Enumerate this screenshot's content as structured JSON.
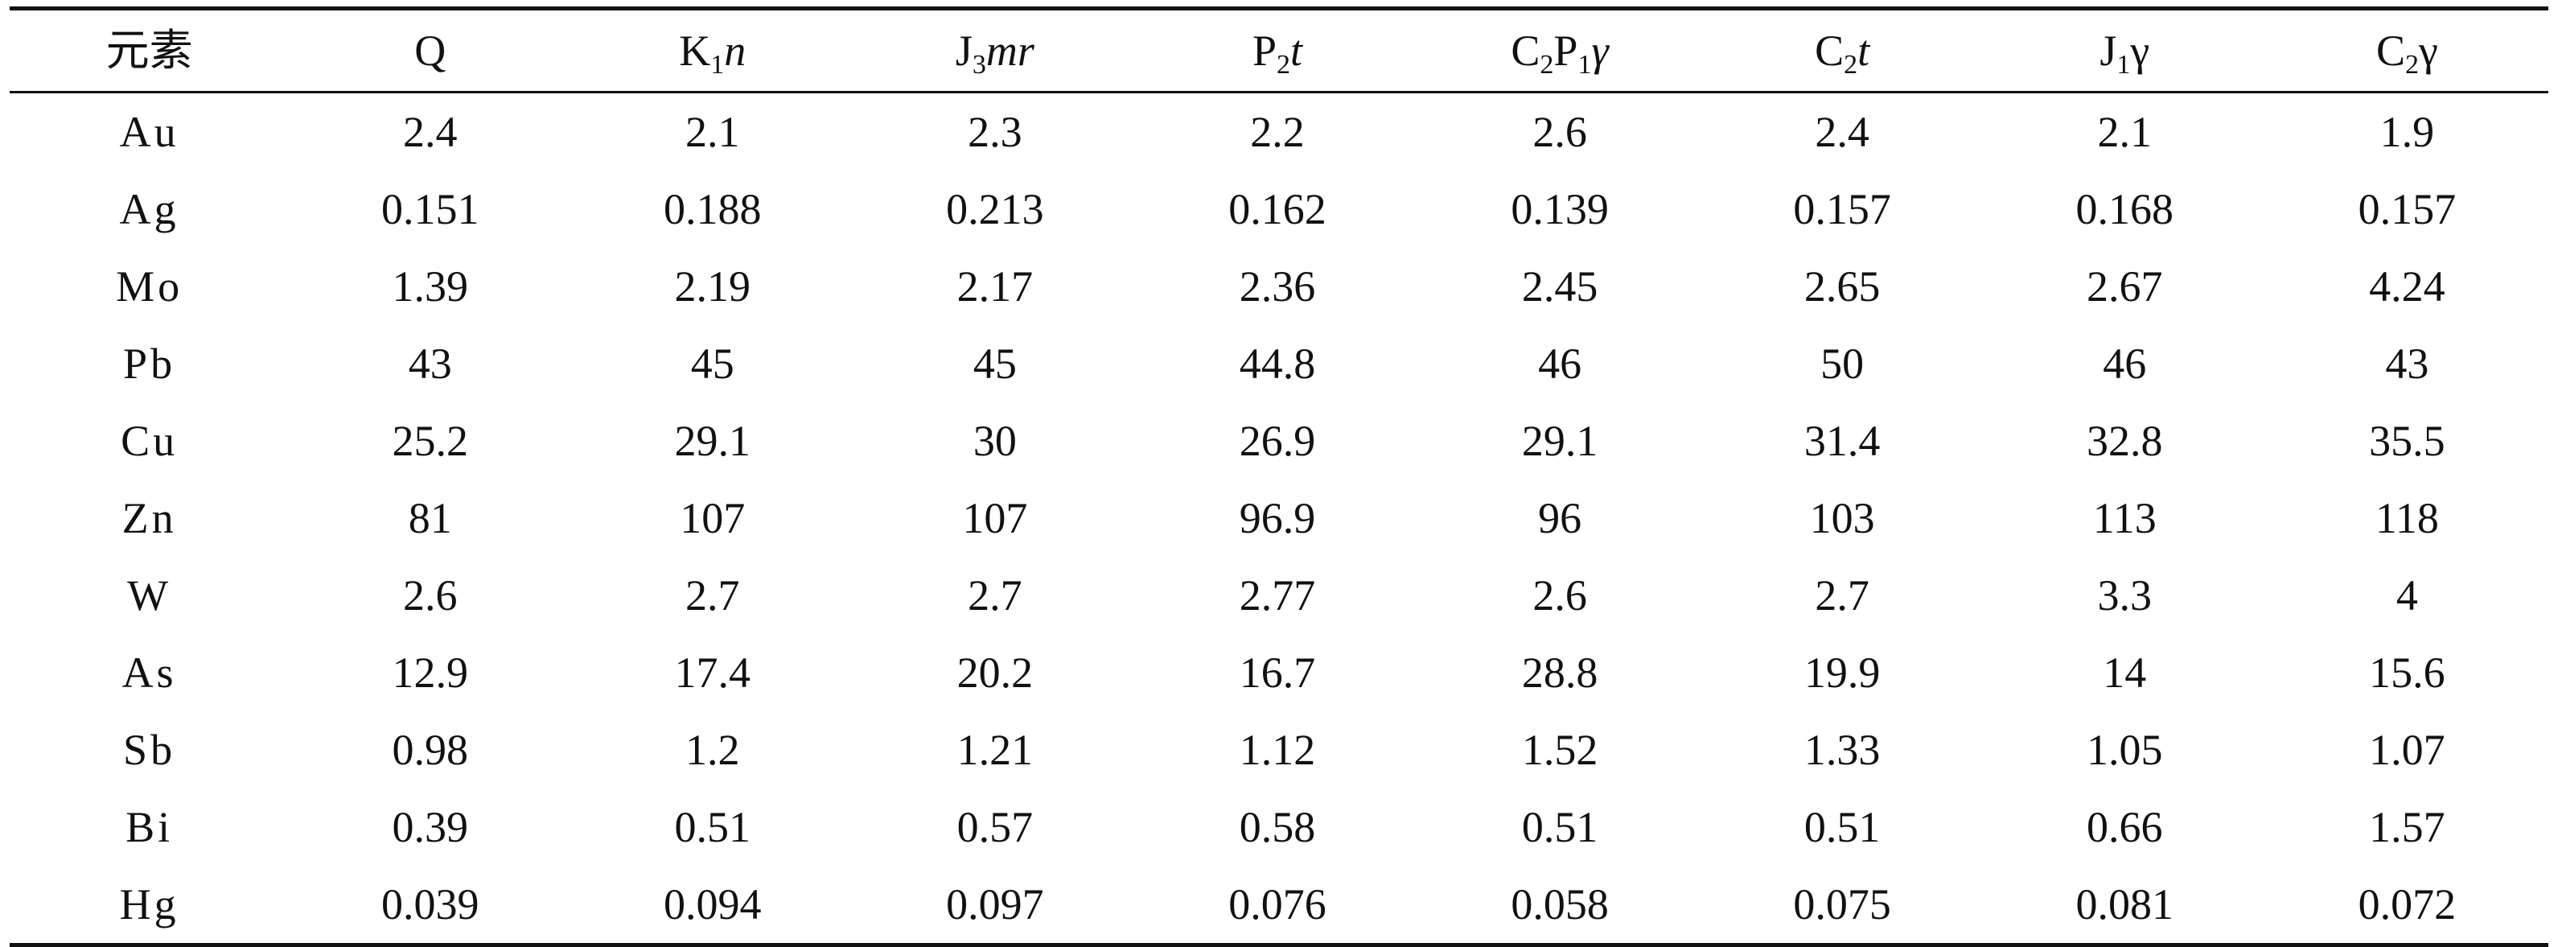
{
  "table": {
    "header": {
      "element_label": "元素",
      "columns": [
        {
          "parts": [
            {
              "t": "Q"
            }
          ]
        },
        {
          "parts": [
            {
              "t": "K"
            },
            {
              "t": "1",
              "sub": true
            },
            {
              "t": "n",
              "it": true
            }
          ]
        },
        {
          "parts": [
            {
              "t": "J"
            },
            {
              "t": "3",
              "sub": true
            },
            {
              "t": "mr",
              "it": true
            }
          ]
        },
        {
          "parts": [
            {
              "t": "P"
            },
            {
              "t": "2",
              "sub": true
            },
            {
              "t": "t",
              "it": true
            }
          ]
        },
        {
          "parts": [
            {
              "t": "C"
            },
            {
              "t": "2",
              "sub": true
            },
            {
              "t": "P"
            },
            {
              "t": "1",
              "sub": true
            },
            {
              "t": "γ",
              "it": true
            }
          ]
        },
        {
          "parts": [
            {
              "t": "C"
            },
            {
              "t": "2",
              "sub": true
            },
            {
              "t": "t",
              "it": true
            }
          ]
        },
        {
          "parts": [
            {
              "t": "J"
            },
            {
              "t": "1",
              "sub": true
            },
            {
              "t": "γ"
            }
          ]
        },
        {
          "parts": [
            {
              "t": "C"
            },
            {
              "t": "2",
              "sub": true
            },
            {
              "t": "γ"
            }
          ]
        }
      ]
    },
    "rows": [
      {
        "element": "Au",
        "values": [
          "2.4",
          "2.1",
          "2.3",
          "2.2",
          "2.6",
          "2.4",
          "2.1",
          "1.9"
        ]
      },
      {
        "element": "Ag",
        "values": [
          "0.151",
          "0.188",
          "0.213",
          "0.162",
          "0.139",
          "0.157",
          "0.168",
          "0.157"
        ]
      },
      {
        "element": "Mo",
        "values": [
          "1.39",
          "2.19",
          "2.17",
          "2.36",
          "2.45",
          "2.65",
          "2.67",
          "4.24"
        ]
      },
      {
        "element": "Pb",
        "values": [
          "43",
          "45",
          "45",
          "44.8",
          "46",
          "50",
          "46",
          "43"
        ]
      },
      {
        "element": "Cu",
        "values": [
          "25.2",
          "29.1",
          "30",
          "26.9",
          "29.1",
          "31.4",
          "32.8",
          "35.5"
        ]
      },
      {
        "element": "Zn",
        "values": [
          "81",
          "107",
          "107",
          "96.9",
          "96",
          "103",
          "113",
          "118"
        ]
      },
      {
        "element": "W",
        "values": [
          "2.6",
          "2.7",
          "2.7",
          "2.77",
          "2.6",
          "2.7",
          "3.3",
          "4"
        ]
      },
      {
        "element": "As",
        "values": [
          "12.9",
          "17.4",
          "20.2",
          "16.7",
          "28.8",
          "19.9",
          "14",
          "15.6"
        ]
      },
      {
        "element": "Sb",
        "values": [
          "0.98",
          "1.2",
          "1.21",
          "1.12",
          "1.52",
          "1.33",
          "1.05",
          "1.07"
        ]
      },
      {
        "element": "Bi",
        "values": [
          "0.39",
          "0.51",
          "0.57",
          "0.58",
          "0.51",
          "0.51",
          "0.66",
          "1.57"
        ]
      },
      {
        "element": "Hg",
        "values": [
          "0.039",
          "0.094",
          "0.097",
          "0.076",
          "0.058",
          "0.075",
          "0.081",
          "0.072"
        ]
      }
    ]
  }
}
